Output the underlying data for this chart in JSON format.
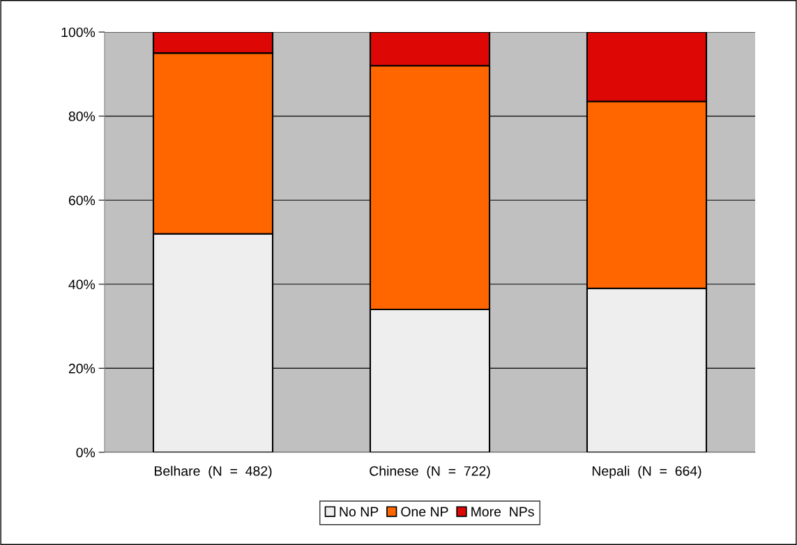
{
  "chart_data": {
    "type": "bar",
    "stacked": true,
    "categories": [
      "Belhare  (N  =  482)",
      "Chinese  (N  =  722)",
      "Nepali  (N  =  664)"
    ],
    "series": [
      {
        "name": "No NP",
        "color": "#eeeeee",
        "values": [
          52,
          34,
          39
        ]
      },
      {
        "name": "One NP",
        "color": "#ff6600",
        "values": [
          43,
          58,
          44.5
        ]
      },
      {
        "name": "More  NPs",
        "color": "#dd0806",
        "values": [
          5,
          8,
          16.5
        ]
      }
    ],
    "ylim": [
      0,
      100
    ],
    "yticks": [
      {
        "value": 0,
        "label": "0%"
      },
      {
        "value": 20,
        "label": "20%"
      },
      {
        "value": 40,
        "label": "40%"
      },
      {
        "value": 60,
        "label": "60%"
      },
      {
        "value": 80,
        "label": "80%"
      },
      {
        "value": 100,
        "label": "100%"
      }
    ],
    "grid": "y",
    "legend": "bottom"
  }
}
